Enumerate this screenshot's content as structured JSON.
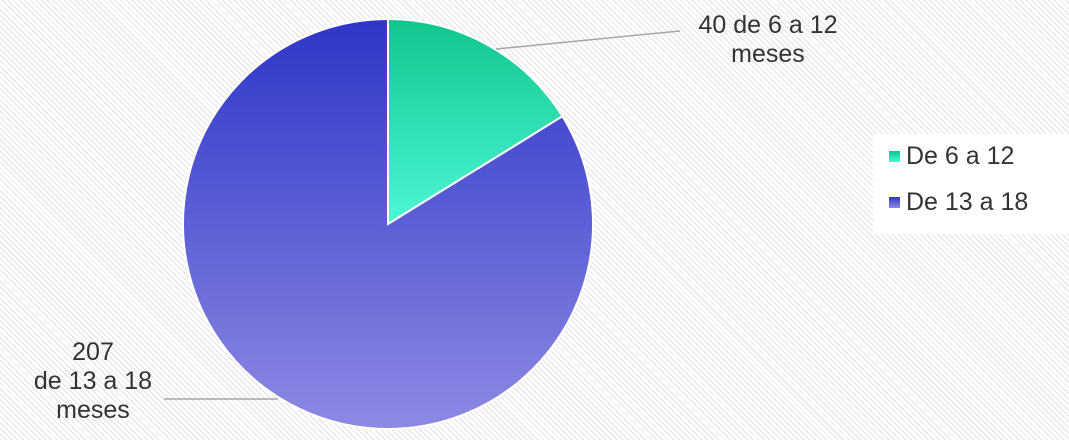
{
  "chart_data": {
    "type": "pie",
    "categories": [
      "De 6 a 12",
      "De 13 a 18"
    ],
    "values": [
      40,
      207
    ],
    "data_labels": [
      [
        "40 de 6 a 12",
        "meses"
      ],
      [
        "207",
        "de 13 a 18",
        "meses"
      ]
    ],
    "colors": [
      {
        "top": "#10c58e",
        "bottom": "#4cf7d6"
      },
      {
        "top": "#2f35c8",
        "bottom": "#8c8ae3"
      }
    ],
    "legend_position": "right",
    "start_angle_deg": 0,
    "direction": "clockwise"
  }
}
